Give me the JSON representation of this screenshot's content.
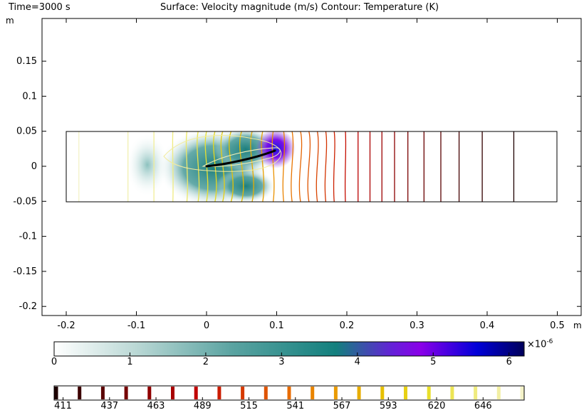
{
  "header": {
    "time": "Time=3000 s",
    "description": "Surface: Velocity magnitude (m/s)  Contour: Temperature (K)"
  },
  "chart_data": {
    "type": "heatmap",
    "surface": "Velocity magnitude (m/s)",
    "contour": "Temperature (K)",
    "x_unit": "m",
    "y_unit": "m",
    "xlim": [
      -0.23,
      0.535
    ],
    "ylim": [
      -0.205,
      0.2
    ],
    "x_ticks": [
      -0.2,
      -0.1,
      0,
      0.1,
      0.2,
      0.3,
      0.4,
      0.5
    ],
    "x_tick_labels": [
      "-0.2",
      "-0.1",
      "0",
      "0.1",
      "0.2",
      "0.3",
      "0.4",
      "0.5"
    ],
    "y_ticks": [
      0.15,
      0.1,
      0.05,
      0,
      -0.05,
      -0.1,
      -0.15,
      -0.2
    ],
    "y_tick_labels": [
      "0.15",
      "0.1",
      "0.05",
      "0",
      "-0.05",
      "-0.1",
      "-0.15",
      "-0.2"
    ],
    "domain": {
      "x": [
        -0.2,
        0.5
      ],
      "y": [
        -0.05,
        0.05
      ]
    },
    "velocity_colorbar": {
      "range": [
        0,
        6.2
      ],
      "multiplier": "×10",
      "exponent": "-6",
      "ticks": [
        0,
        1,
        2,
        3,
        4,
        5,
        6
      ],
      "tick_labels": [
        "0",
        "1",
        "2",
        "3",
        "4",
        "5",
        "6"
      ],
      "colors": [
        "#ffffff",
        "#a9cfcc",
        "#3e9190",
        "#1b7c7b",
        "#8a00e8",
        "#0000e0",
        "#000064"
      ]
    },
    "temperature_colorbar": {
      "tick_labels": [
        "411",
        "437",
        "463",
        "489",
        "515",
        "541",
        "567",
        "593",
        "620",
        "646"
      ],
      "ticks": [
        411,
        437,
        463,
        489,
        515,
        541,
        567,
        593,
        620,
        646
      ],
      "range": [
        406,
        669
      ]
    },
    "contour_x": [
      -0.182,
      -0.112,
      -0.075,
      -0.048,
      -0.028,
      -0.012,
      0.0,
      0.012,
      0.023,
      0.035,
      0.05,
      0.065,
      0.08,
      0.095,
      0.11,
      0.122,
      0.134,
      0.146,
      0.158,
      0.17,
      0.182,
      0.198,
      0.216,
      0.233,
      0.25,
      0.268,
      0.287,
      0.31,
      0.334,
      0.36,
      0.393,
      0.438
    ]
  }
}
